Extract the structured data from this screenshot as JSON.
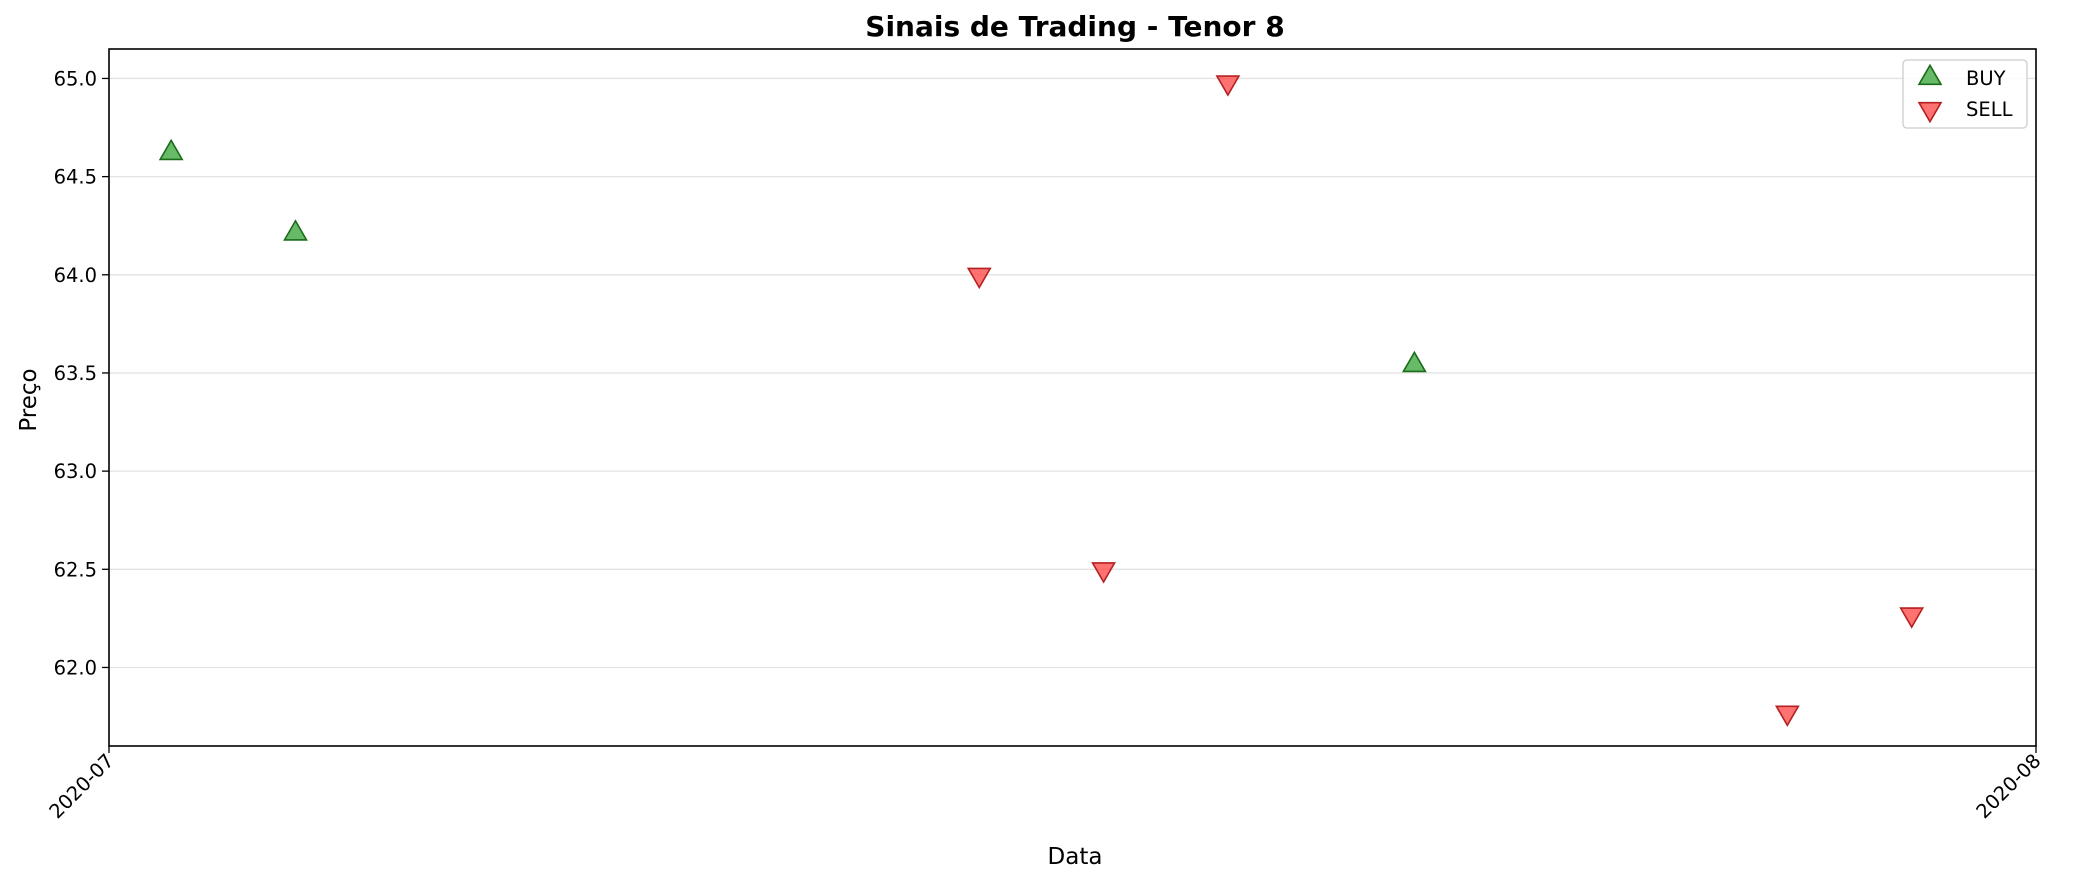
{
  "chart_data": {
    "type": "scatter",
    "title": "Sinais de Trading - Tenor 8",
    "xlabel": "Data",
    "ylabel": "Preço",
    "x_axis_type": "date",
    "xlim": [
      "2020-07-01",
      "2020-08-01"
    ],
    "ylim": [
      61.6,
      65.15
    ],
    "x_ticks": [
      "2020-07-01",
      "2020-08-01"
    ],
    "x_tick_labels": [
      "2020-07",
      "2020-08"
    ],
    "y_ticks": [
      62.0,
      62.5,
      63.0,
      63.5,
      64.0,
      64.5,
      65.0
    ],
    "y_tick_labels": [
      "62.0",
      "62.5",
      "63.0",
      "63.5",
      "64.0",
      "64.5",
      "65.0"
    ],
    "grid": "horizontal",
    "legend_position": "top-right",
    "series": [
      {
        "name": "BUY",
        "marker": "triangle-up",
        "color": "#2ca02c",
        "points": [
          {
            "x": "2020-07-02",
            "y": 64.62
          },
          {
            "x": "2020-07-04",
            "y": 64.21
          },
          {
            "x": "2020-07-22",
            "y": 63.54
          }
        ]
      },
      {
        "name": "SELL",
        "marker": "triangle-down",
        "color": "#ff0000",
        "points": [
          {
            "x": "2020-07-15",
            "y": 64.0
          },
          {
            "x": "2020-07-17",
            "y": 62.5
          },
          {
            "x": "2020-07-19",
            "y": 64.98
          },
          {
            "x": "2020-07-28",
            "y": 61.77
          },
          {
            "x": "2020-07-30",
            "y": 62.27
          }
        ]
      }
    ]
  }
}
